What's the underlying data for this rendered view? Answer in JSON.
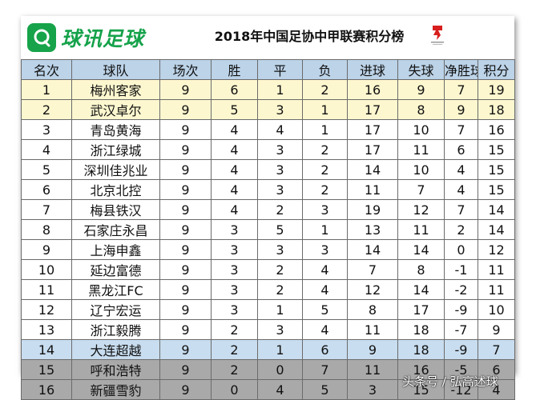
{
  "header": {
    "logo_text": "球讯足球",
    "title": "2018年中国足协中甲联赛积分榜"
  },
  "columns": [
    "名次",
    "球队",
    "场次",
    "胜",
    "平",
    "负",
    "进球",
    "失球",
    "净胜球",
    "积分"
  ],
  "rows": [
    {
      "rank": "1",
      "team": "梅州客家",
      "played": "9",
      "w": "6",
      "d": "1",
      "l": "2",
      "gf": "16",
      "ga": "9",
      "gd": "7",
      "pts": "19",
      "highlight": "yellow"
    },
    {
      "rank": "2",
      "team": "武汉卓尔",
      "played": "9",
      "w": "5",
      "d": "3",
      "l": "1",
      "gf": "17",
      "ga": "8",
      "gd": "9",
      "pts": "18",
      "highlight": "yellow"
    },
    {
      "rank": "3",
      "team": "青岛黄海",
      "played": "9",
      "w": "4",
      "d": "4",
      "l": "1",
      "gf": "17",
      "ga": "10",
      "gd": "7",
      "pts": "16",
      "highlight": ""
    },
    {
      "rank": "4",
      "team": "浙江绿城",
      "played": "9",
      "w": "4",
      "d": "3",
      "l": "2",
      "gf": "17",
      "ga": "11",
      "gd": "6",
      "pts": "15",
      "highlight": ""
    },
    {
      "rank": "5",
      "team": "深圳佳兆业",
      "played": "9",
      "w": "4",
      "d": "3",
      "l": "2",
      "gf": "14",
      "ga": "10",
      "gd": "4",
      "pts": "15",
      "highlight": ""
    },
    {
      "rank": "6",
      "team": "北京北控",
      "played": "9",
      "w": "4",
      "d": "3",
      "l": "2",
      "gf": "11",
      "ga": "7",
      "gd": "4",
      "pts": "15",
      "highlight": ""
    },
    {
      "rank": "7",
      "team": "梅县铁汉",
      "played": "9",
      "w": "4",
      "d": "2",
      "l": "3",
      "gf": "19",
      "ga": "12",
      "gd": "7",
      "pts": "14",
      "highlight": ""
    },
    {
      "rank": "8",
      "team": "石家庄永昌",
      "played": "9",
      "w": "3",
      "d": "5",
      "l": "1",
      "gf": "13",
      "ga": "11",
      "gd": "2",
      "pts": "14",
      "highlight": ""
    },
    {
      "rank": "9",
      "team": "上海申鑫",
      "played": "9",
      "w": "3",
      "d": "3",
      "l": "3",
      "gf": "14",
      "ga": "14",
      "gd": "0",
      "pts": "12",
      "highlight": ""
    },
    {
      "rank": "10",
      "team": "延边富德",
      "played": "9",
      "w": "3",
      "d": "2",
      "l": "4",
      "gf": "7",
      "ga": "8",
      "gd": "-1",
      "pts": "11",
      "highlight": ""
    },
    {
      "rank": "11",
      "team": "黑龙江FC",
      "played": "9",
      "w": "3",
      "d": "2",
      "l": "4",
      "gf": "12",
      "ga": "14",
      "gd": "-2",
      "pts": "11",
      "highlight": ""
    },
    {
      "rank": "12",
      "team": "辽宁宏运",
      "played": "9",
      "w": "3",
      "d": "1",
      "l": "5",
      "gf": "8",
      "ga": "17",
      "gd": "-9",
      "pts": "10",
      "highlight": ""
    },
    {
      "rank": "13",
      "team": "浙江毅腾",
      "played": "9",
      "w": "2",
      "d": "3",
      "l": "4",
      "gf": "11",
      "ga": "18",
      "gd": "-7",
      "pts": "9",
      "highlight": ""
    },
    {
      "rank": "14",
      "team": "大连超越",
      "played": "9",
      "w": "2",
      "d": "1",
      "l": "6",
      "gf": "9",
      "ga": "18",
      "gd": "-9",
      "pts": "7",
      "highlight": "blue"
    },
    {
      "rank": "15",
      "team": "呼和浩特",
      "played": "9",
      "w": "2",
      "d": "0",
      "l": "7",
      "gf": "11",
      "ga": "16",
      "gd": "-5",
      "pts": "6",
      "highlight": "gray"
    },
    {
      "rank": "16",
      "team": "新疆雪豹",
      "played": "9",
      "w": "0",
      "d": "4",
      "l": "5",
      "gf": "3",
      "ga": "15",
      "gd": "-12",
      "pts": "4",
      "highlight": "gray"
    }
  ],
  "watermark": "头条号 / 弘高述球",
  "colors": {
    "header_row": "#bcd3e8",
    "promotion_rows": "#fdf7cf",
    "playoff_row": "#c8ddef",
    "relegation_rows": "#a9a9a9",
    "logo_green": "#17a34a"
  }
}
